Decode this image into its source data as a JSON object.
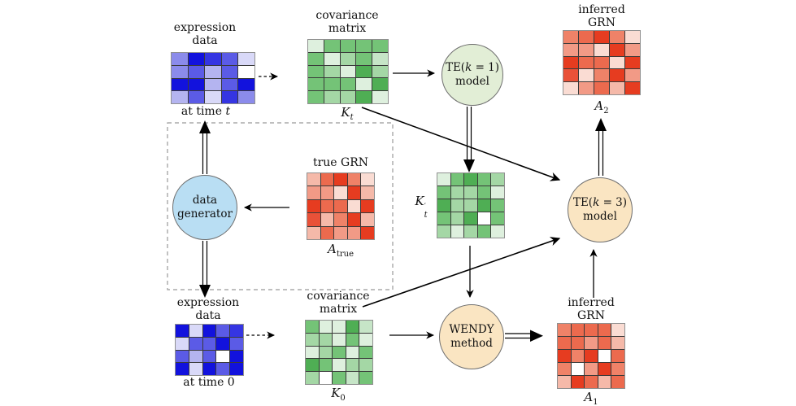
{
  "diagram": {
    "top_row": {
      "expr_t_label": {
        "line1": "expression",
        "line2": "data"
      },
      "expr_t_caption": {
        "text": "at time ",
        "var": "t"
      },
      "cov_t_label": {
        "line1": "covariance",
        "line2": "matrix"
      },
      "kt_symbol": {
        "base": "K",
        "sub": "t"
      },
      "te1_node": {
        "pre": "TE(",
        "var": "k",
        "post": " = 1)",
        "line2": "model"
      },
      "a2_label": {
        "line1": "inferred",
        "line2": "GRN"
      },
      "a2_symbol": {
        "base": "A",
        "sub": "2"
      }
    },
    "middle_row": {
      "datagen_node": {
        "line1": "data",
        "line2": "generator"
      },
      "truegrn_label": "true GRN",
      "atrue_symbol": {
        "base": "A",
        "sub": "true"
      },
      "ktp_symbol": {
        "base": "K",
        "prime": "′",
        "sub": "t"
      },
      "te3_node": {
        "pre": "TE(",
        "var": "k",
        "post": " = 3)",
        "line2": "model"
      }
    },
    "bottom_row": {
      "expr_0_label": {
        "line1": "expression",
        "line2": "data"
      },
      "expr_0_caption": {
        "text": "at time 0"
      },
      "cov_0_label": {
        "line1": "covariance",
        "line2": "matrix"
      },
      "k0_symbol": {
        "base": "K",
        "sub": "0"
      },
      "wendy_node": {
        "line1": "WENDY",
        "line2": "method"
      },
      "a1_label": {
        "line1": "inferred",
        "line2": "GRN"
      },
      "a1_symbol": {
        "base": "A",
        "sub": "1"
      }
    }
  },
  "colors": {
    "te1_fill": "#e2eed6",
    "datagen_fill": "#b9def3",
    "te3_fill": "#fae5c2",
    "wendy_fill": "#fae5c2",
    "node_border": "#6e6e6e",
    "matrix_border": "#909090",
    "grid_line": "#3a3a3a",
    "dashed_box": "#999999",
    "arrow": "#000000"
  },
  "palettes": {
    "blue": [
      "#1212dd",
      "#3535e2",
      "#5b5be6",
      "#8b8beb",
      "#b4b4f0",
      "#d9d9f8",
      "#ffffff"
    ],
    "green": [
      "#4fae54",
      "#74c377",
      "#a4d7a5",
      "#c6e5c7",
      "#def0de",
      "#ffffff"
    ],
    "red": [
      "#e63c20",
      "#e95138",
      "#ec6a4e",
      "#ef8268",
      "#f29a86",
      "#f5b9a9",
      "#fadcd3",
      "#ffffff"
    ]
  },
  "matrices": {
    "expr_t": {
      "palette": "blue",
      "cells": [
        [
          3,
          0,
          1,
          2,
          5
        ],
        [
          3,
          2,
          4,
          2,
          6
        ],
        [
          0,
          0,
          4,
          2,
          0
        ],
        [
          4,
          2,
          5,
          1,
          3
        ]
      ]
    },
    "kt": {
      "palette": "green",
      "cells": [
        [
          4,
          1,
          1,
          1,
          1
        ],
        [
          1,
          4,
          2,
          1,
          3
        ],
        [
          1,
          2,
          4,
          0,
          2
        ],
        [
          1,
          1,
          1,
          4,
          0
        ],
        [
          1,
          2,
          2,
          0,
          4
        ]
      ]
    },
    "a2": {
      "palette": "red",
      "cells": [
        [
          3,
          2,
          0,
          3,
          6
        ],
        [
          4,
          4,
          6,
          0,
          4
        ],
        [
          0,
          2,
          2,
          6,
          0
        ],
        [
          1,
          6,
          3,
          0,
          4
        ],
        [
          6,
          4,
          2,
          5,
          0
        ]
      ]
    },
    "atrue": {
      "palette": "red",
      "cells": [
        [
          5,
          2,
          0,
          3,
          6
        ],
        [
          4,
          4,
          6,
          0,
          5
        ],
        [
          0,
          2,
          2,
          6,
          0
        ],
        [
          1,
          5,
          3,
          0,
          5
        ],
        [
          5,
          2,
          4,
          4,
          0
        ]
      ]
    },
    "ktp": {
      "palette": "green",
      "cells": [
        [
          4,
          1,
          0,
          1,
          2
        ],
        [
          1,
          2,
          2,
          1,
          4
        ],
        [
          0,
          2,
          2,
          0,
          1
        ],
        [
          1,
          2,
          0,
          5,
          1
        ],
        [
          2,
          4,
          2,
          1,
          4
        ]
      ]
    },
    "expr_0": {
      "palette": "blue",
      "cells": [
        [
          0,
          5,
          0,
          2,
          1
        ],
        [
          5,
          2,
          2,
          0,
          2
        ],
        [
          2,
          4,
          2,
          6,
          0
        ],
        [
          0,
          5,
          0,
          2,
          0
        ]
      ]
    },
    "k0": {
      "palette": "green",
      "cells": [
        [
          1,
          4,
          4,
          0,
          3
        ],
        [
          2,
          2,
          4,
          1,
          4
        ],
        [
          4,
          2,
          1,
          4,
          1
        ],
        [
          0,
          1,
          4,
          2,
          2
        ],
        [
          2,
          5,
          1,
          3,
          1
        ]
      ]
    },
    "a1": {
      "palette": "red",
      "cells": [
        [
          3,
          2,
          2,
          2,
          6
        ],
        [
          2,
          2,
          4,
          2,
          5
        ],
        [
          0,
          3,
          0,
          7,
          2
        ],
        [
          3,
          7,
          4,
          0,
          3
        ],
        [
          5,
          0,
          2,
          5,
          2
        ]
      ]
    }
  }
}
